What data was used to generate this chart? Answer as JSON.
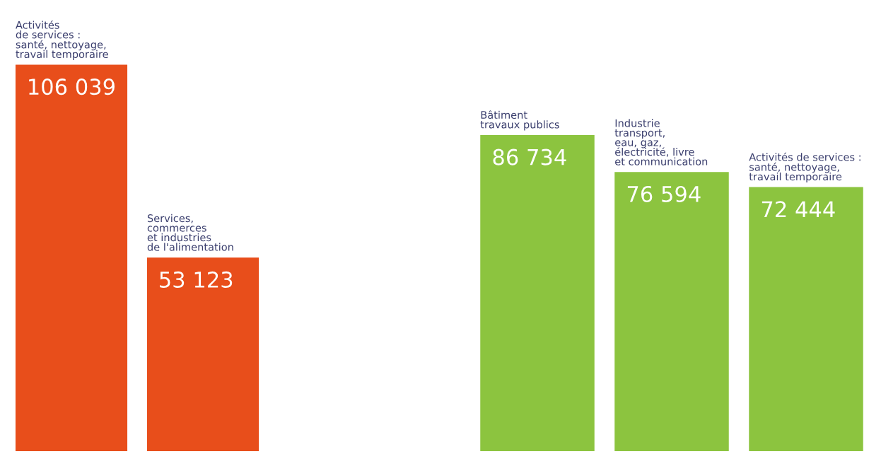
{
  "chart_data": [
    {
      "type": "bar",
      "categories": [
        "Activités\nde services :\nsanté, nettoyage,\ntravail temporaire",
        "Services,\ncommerces\net industries\nde l'alimentation"
      ],
      "values": [
        106039,
        53123
      ],
      "value_labels": [
        "106 039",
        "53 123"
      ],
      "color": "#e84e1b"
    },
    {
      "type": "bar",
      "categories": [
        "Bâtiment\ntravaux publics",
        "Industrie\ntransport,\neau, gaz,\nélectricité, livre\net communication",
        "Activités de services :\nsanté, nettoyage,\ntravail temporaire"
      ],
      "values": [
        86734,
        76594,
        72444
      ],
      "value_labels": [
        "86 734",
        "76 594",
        "72 444"
      ],
      "color": "#8cc43f"
    }
  ]
}
